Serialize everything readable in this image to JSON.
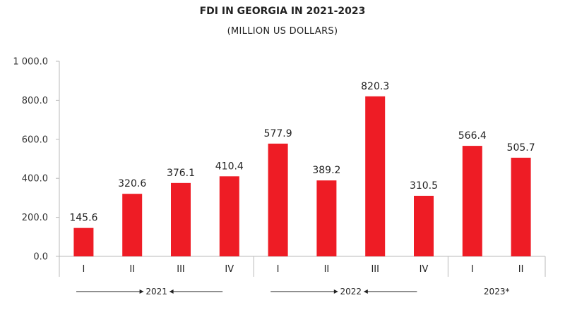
{
  "chart_data": {
    "type": "bar",
    "title": "FDI IN GEORGIA IN 2021-2023",
    "subtitle": "(MILLION US DOLLARS)",
    "xlabel": "",
    "ylabel": "",
    "ylim": [
      0,
      1000
    ],
    "yticks": [
      0,
      200,
      400,
      600,
      800,
      1000
    ],
    "ytick_labels": [
      "0.0",
      "200.0",
      "400.0",
      "600.0",
      "800.0",
      "1 000.0"
    ],
    "categories": [
      "I",
      "II",
      "III",
      "IV",
      "I",
      "II",
      "III",
      "IV",
      "I",
      "II"
    ],
    "values": [
      145.6,
      320.6,
      376.1,
      410.4,
      577.9,
      389.2,
      820.3,
      310.5,
      566.4,
      505.7
    ],
    "value_labels": [
      "145.6",
      "320.6",
      "376.1",
      "410.4",
      "577.9",
      "389.2",
      "820.3",
      "310.5",
      "566.4",
      "505.7"
    ],
    "groups": [
      {
        "label": "2021",
        "count": 4
      },
      {
        "label": "2022",
        "count": 4
      },
      {
        "label": "2023*",
        "count": 2
      }
    ],
    "colors": {
      "bar": "#ee1c25",
      "axis": "#b9b9b9",
      "text": "#222222"
    }
  }
}
